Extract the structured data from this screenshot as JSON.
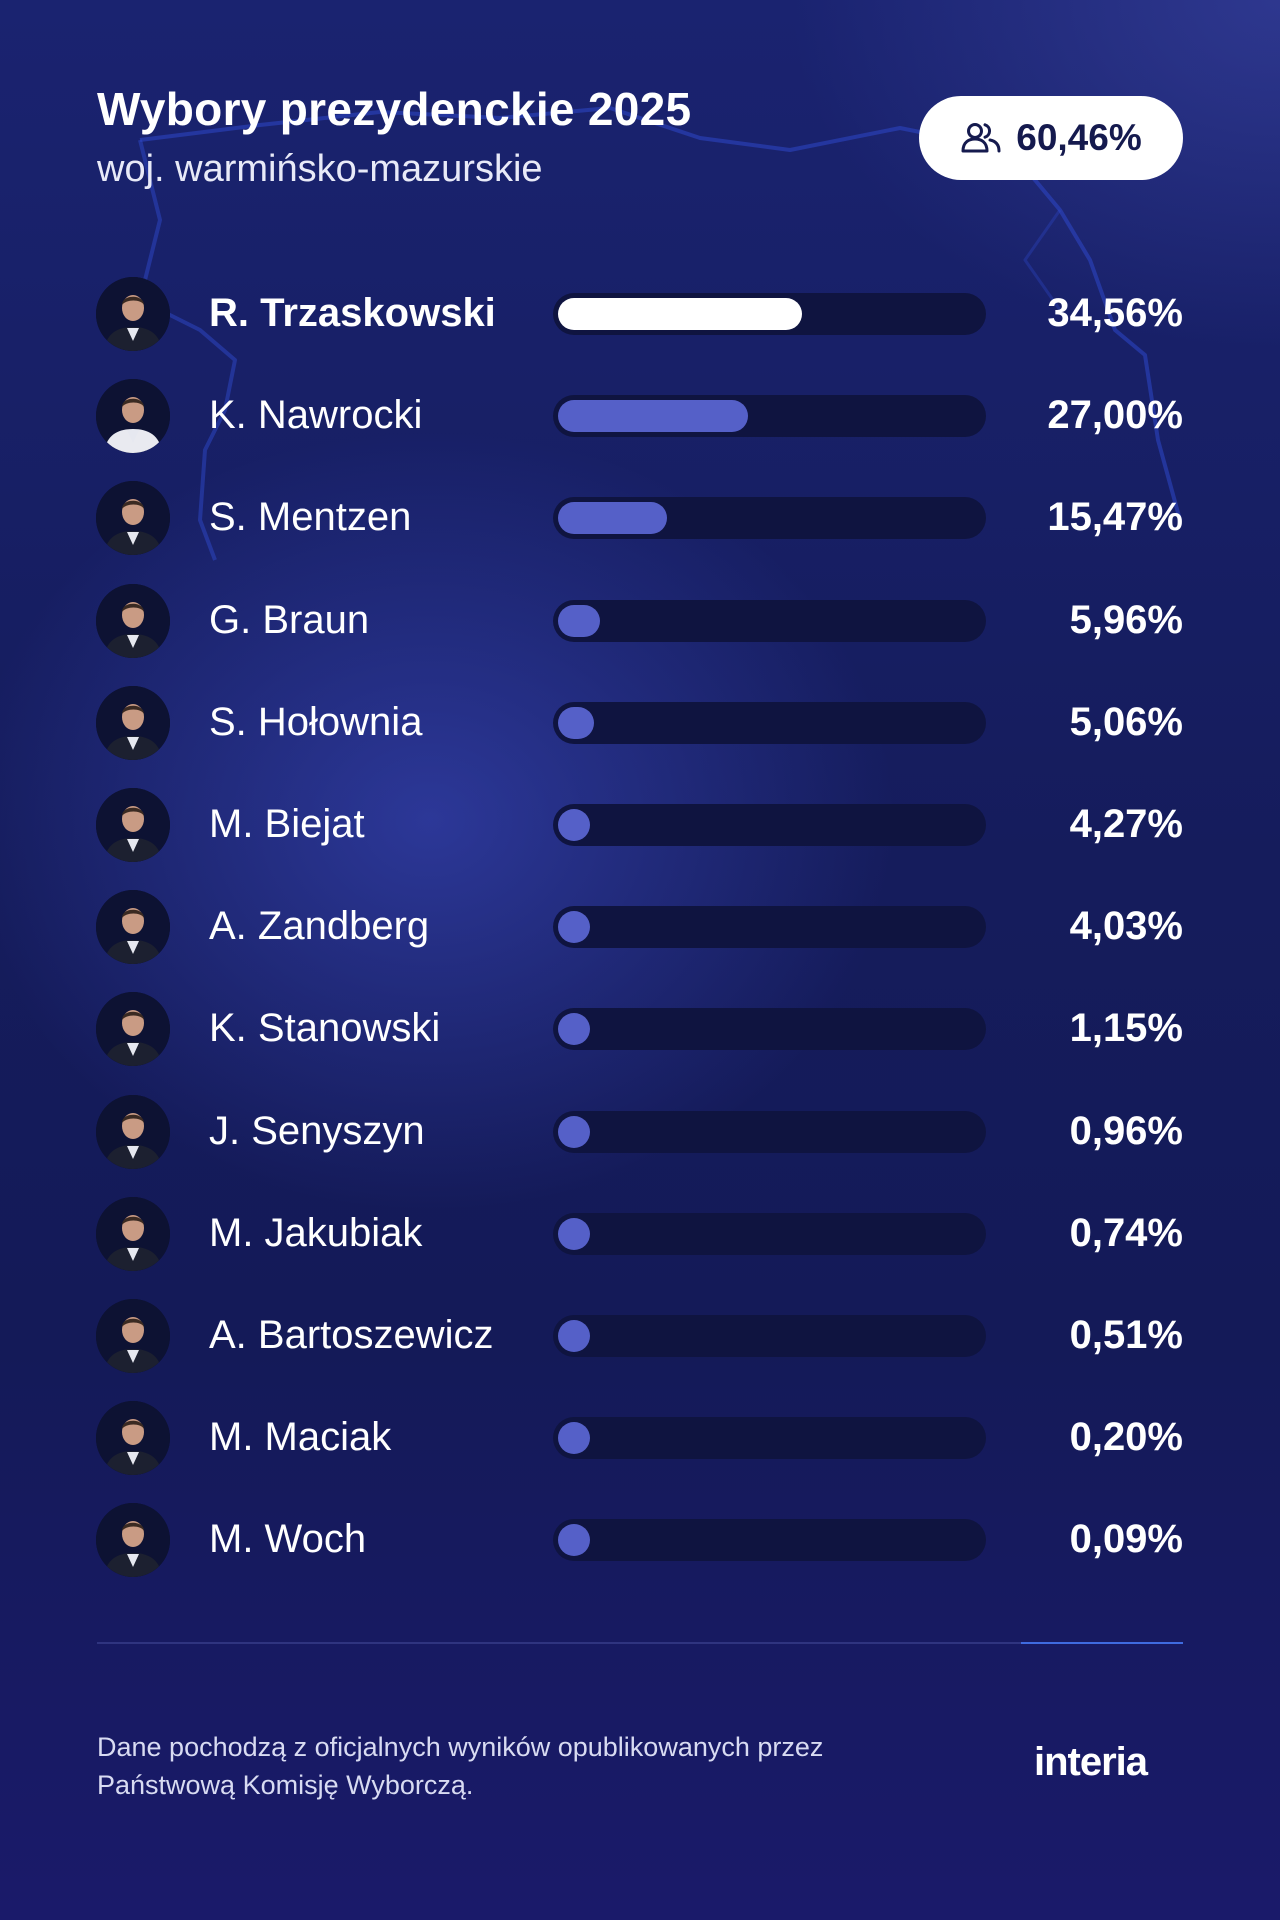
{
  "header": {
    "title": "Wybory prezydenckie 2025",
    "subtitle": "woj. warmińsko-mazurskie",
    "turnout": "60,46%",
    "turnout_icon": "people-icon"
  },
  "chart_data": {
    "type": "bar",
    "orientation": "horizontal",
    "title": "Wybory prezydenckie 2025",
    "subtitle": "woj. warmińsko-mazurskie",
    "xlim": [
      0,
      60
    ],
    "categories": [
      "R. Trzaskowski",
      "K. Nawrocki",
      "S. Mentzen",
      "G. Braun",
      "S. Hołownia",
      "M. Biejat",
      "A. Zandberg",
      "K. Stanowski",
      "J. Senyszyn",
      "M. Jakubiak",
      "A. Bartoszewicz",
      "M. Maciak",
      "M. Woch"
    ],
    "values": [
      34.56,
      27.0,
      15.47,
      5.96,
      5.06,
      4.27,
      4.03,
      1.15,
      0.96,
      0.74,
      0.51,
      0.2,
      0.09
    ],
    "value_labels": [
      "34,56%",
      "27,00%",
      "15,47%",
      "5,96%",
      "5,06%",
      "4,27%",
      "4,03%",
      "1,15%",
      "0,96%",
      "0,74%",
      "0,51%",
      "0,20%",
      "0,09%"
    ],
    "colors": {
      "leader_bar": "#ffffff",
      "bar": "#5560c8",
      "track": "#0f1440"
    }
  },
  "footer": {
    "source_line1": "Dane pochodzą z oficjalnych wyników opublikowanych przez",
    "source_line2": "Państwową Komisję Wyborczą.",
    "logo": "interia"
  },
  "colors": {
    "background_top": "#1a2370",
    "background_bottom": "#141a58",
    "pill_background": "#ffffff",
    "pill_text": "#151a4e",
    "accent_line": "#3f6be0"
  }
}
